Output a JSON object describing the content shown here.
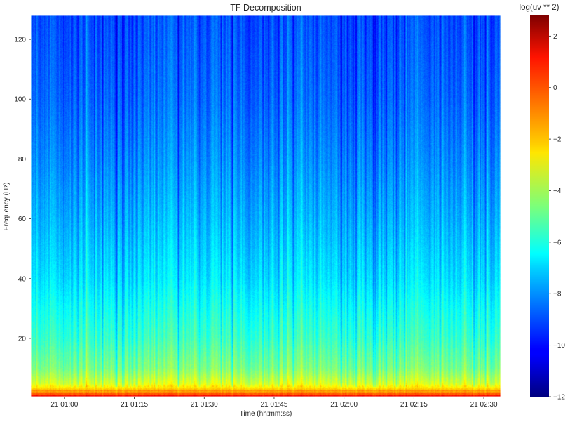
{
  "chart_data": {
    "type": "heatmap",
    "title": "TF Decomposition",
    "xlabel": "Time (hh:mm:ss)",
    "ylabel": "Frequency (Hz)",
    "x_ticks": [
      "21 01:00",
      "21 01:15",
      "21 01:30",
      "21 01:45",
      "21 02:00",
      "21 02:15",
      "21 02:30"
    ],
    "x_tick_minutes": [
      60,
      75,
      90,
      105,
      120,
      135,
      150
    ],
    "xlim_minutes": [
      52.8,
      153.6
    ],
    "y_ticks": [
      20,
      40,
      60,
      80,
      100,
      120
    ],
    "ylim": [
      0.5,
      128
    ],
    "colorbar": {
      "label": "log(uv ** 2)",
      "ticks": [
        2,
        0,
        -2,
        -4,
        -6,
        -8,
        -10,
        -12
      ],
      "range": [
        -12,
        2.8
      ],
      "colormap": "jet"
    },
    "value_profile": [
      {
        "freq": 0.5,
        "value": 1.0
      },
      {
        "freq": 2,
        "value": -1.2
      },
      {
        "freq": 5,
        "value": -3.3
      },
      {
        "freq": 10,
        "value": -4.6
      },
      {
        "freq": 20,
        "value": -5.6
      },
      {
        "freq": 40,
        "value": -6.8
      },
      {
        "freq": 60,
        "value": -7.5
      },
      {
        "freq": 80,
        "value": -8.1
      },
      {
        "freq": 100,
        "value": -8.6
      },
      {
        "freq": 128,
        "value": -9.0
      }
    ],
    "grid": false
  }
}
